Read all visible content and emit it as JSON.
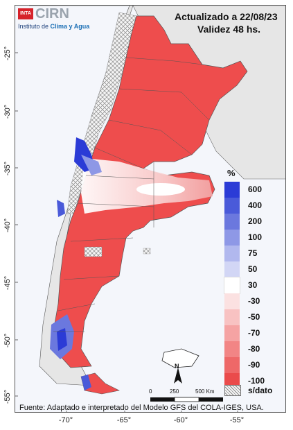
{
  "header": {
    "updated": "Actualizado a 22/08/23",
    "validity": "Validez 48 hs."
  },
  "logo": {
    "inta": "INTA",
    "cirn": "CIRN",
    "subtitle_pre": "Instituto de ",
    "subtitle_bold": "Clima y Agua"
  },
  "axes": {
    "lat_ticks": [
      "-25°",
      "-30°",
      "-35°",
      "-40°",
      "-45°",
      "-50°",
      "-55°"
    ],
    "lon_ticks": [
      "-70°",
      "-65°",
      "-60°",
      "-55°"
    ]
  },
  "legend": {
    "title": "%",
    "entries": [
      {
        "label": "600",
        "color": "#2b3bd6"
      },
      {
        "label": "400",
        "color": "#4a5ad9"
      },
      {
        "label": "200",
        "color": "#6b78de"
      },
      {
        "label": "100",
        "color": "#8e98e6"
      },
      {
        "label": "75",
        "color": "#b1b8ee"
      },
      {
        "label": "50",
        "color": "#d2d6f5"
      },
      {
        "label": "30",
        "color": "#ffffff"
      },
      {
        "label": "-30",
        "color": "#fbe1e1"
      },
      {
        "label": "-50",
        "color": "#f8c2c2"
      },
      {
        "label": "-70",
        "color": "#f5a3a3"
      },
      {
        "label": "-80",
        "color": "#f28585"
      },
      {
        "label": "-90",
        "color": "#ee6868"
      },
      {
        "label": "-100",
        "color": "#ea4b4b"
      }
    ],
    "nodata_label": "s/dato"
  },
  "scale": {
    "north": "N",
    "labels": [
      "0",
      "250",
      "500 Km"
    ]
  },
  "source": "Fuente: Adaptado e interpretado del Modelo GFS del COLA-IGES, USA."
}
